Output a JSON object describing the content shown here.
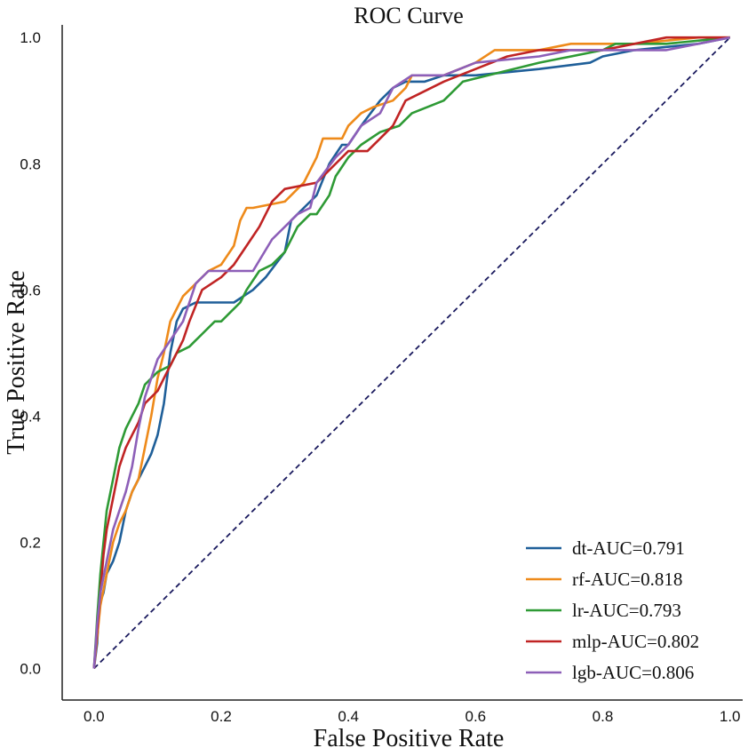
{
  "chart_data": {
    "type": "line",
    "title": "ROC Curve",
    "xlabel": "False Positive Rate",
    "ylabel": "True Positive Rate",
    "xlim": [
      -0.05,
      1.02
    ],
    "ylim": [
      -0.05,
      1.02
    ],
    "xticks": [
      "0.0",
      "0.2",
      "0.4",
      "0.6",
      "0.8",
      "1.0"
    ],
    "yticks": [
      "0.0",
      "0.2",
      "0.4",
      "0.6",
      "0.8",
      "1.0"
    ],
    "grid": false,
    "legend_position": "bottom-right",
    "diagonal": {
      "color": "#1a1a5e",
      "style": "dashed",
      "points": [
        [
          0,
          0
        ],
        [
          1,
          1
        ]
      ]
    },
    "series": [
      {
        "name": "dt-AUC=0.791",
        "color": "#1f5f99",
        "points": [
          [
            0,
            0
          ],
          [
            0.005,
            0.04
          ],
          [
            0.008,
            0.1
          ],
          [
            0.015,
            0.12
          ],
          [
            0.02,
            0.15
          ],
          [
            0.03,
            0.17
          ],
          [
            0.04,
            0.2
          ],
          [
            0.05,
            0.25
          ],
          [
            0.06,
            0.28
          ],
          [
            0.07,
            0.3
          ],
          [
            0.08,
            0.32
          ],
          [
            0.09,
            0.34
          ],
          [
            0.1,
            0.37
          ],
          [
            0.11,
            0.42
          ],
          [
            0.12,
            0.5
          ],
          [
            0.13,
            0.55
          ],
          [
            0.14,
            0.57
          ],
          [
            0.16,
            0.58
          ],
          [
            0.22,
            0.58
          ],
          [
            0.25,
            0.6
          ],
          [
            0.27,
            0.62
          ],
          [
            0.3,
            0.66
          ],
          [
            0.31,
            0.71
          ],
          [
            0.33,
            0.73
          ],
          [
            0.35,
            0.75
          ],
          [
            0.37,
            0.8
          ],
          [
            0.39,
            0.83
          ],
          [
            0.4,
            0.83
          ],
          [
            0.42,
            0.86
          ],
          [
            0.45,
            0.9
          ],
          [
            0.47,
            0.92
          ],
          [
            0.49,
            0.93
          ],
          [
            0.52,
            0.93
          ],
          [
            0.55,
            0.94
          ],
          [
            0.6,
            0.94
          ],
          [
            0.7,
            0.95
          ],
          [
            0.78,
            0.96
          ],
          [
            0.8,
            0.97
          ],
          [
            0.85,
            0.98
          ],
          [
            0.95,
            0.99
          ],
          [
            1,
            1
          ]
        ]
      },
      {
        "name": "rf-AUC=0.818",
        "color": "#ee8a1a",
        "points": [
          [
            0,
            0
          ],
          [
            0.01,
            0.1
          ],
          [
            0.02,
            0.15
          ],
          [
            0.03,
            0.2
          ],
          [
            0.04,
            0.23
          ],
          [
            0.05,
            0.25
          ],
          [
            0.06,
            0.28
          ],
          [
            0.07,
            0.3
          ],
          [
            0.08,
            0.35
          ],
          [
            0.09,
            0.4
          ],
          [
            0.1,
            0.46
          ],
          [
            0.11,
            0.5
          ],
          [
            0.12,
            0.55
          ],
          [
            0.13,
            0.57
          ],
          [
            0.14,
            0.59
          ],
          [
            0.15,
            0.6
          ],
          [
            0.17,
            0.62
          ],
          [
            0.18,
            0.63
          ],
          [
            0.2,
            0.64
          ],
          [
            0.22,
            0.67
          ],
          [
            0.23,
            0.71
          ],
          [
            0.24,
            0.73
          ],
          [
            0.25,
            0.73
          ],
          [
            0.3,
            0.74
          ],
          [
            0.33,
            0.77
          ],
          [
            0.35,
            0.81
          ],
          [
            0.36,
            0.84
          ],
          [
            0.39,
            0.84
          ],
          [
            0.4,
            0.86
          ],
          [
            0.42,
            0.88
          ],
          [
            0.44,
            0.89
          ],
          [
            0.47,
            0.9
          ],
          [
            0.49,
            0.92
          ],
          [
            0.5,
            0.94
          ],
          [
            0.55,
            0.94
          ],
          [
            0.6,
            0.96
          ],
          [
            0.63,
            0.98
          ],
          [
            0.7,
            0.98
          ],
          [
            0.75,
            0.99
          ],
          [
            0.85,
            0.99
          ],
          [
            0.95,
            1
          ],
          [
            1,
            1
          ]
        ]
      },
      {
        "name": "lr-AUC=0.793",
        "color": "#2e9a35",
        "points": [
          [
            0,
            0
          ],
          [
            0.005,
            0.08
          ],
          [
            0.01,
            0.15
          ],
          [
            0.015,
            0.2
          ],
          [
            0.02,
            0.25
          ],
          [
            0.03,
            0.3
          ],
          [
            0.04,
            0.35
          ],
          [
            0.05,
            0.38
          ],
          [
            0.06,
            0.4
          ],
          [
            0.07,
            0.42
          ],
          [
            0.08,
            0.45
          ],
          [
            0.1,
            0.47
          ],
          [
            0.12,
            0.48
          ],
          [
            0.13,
            0.5
          ],
          [
            0.15,
            0.51
          ],
          [
            0.16,
            0.52
          ],
          [
            0.17,
            0.53
          ],
          [
            0.19,
            0.55
          ],
          [
            0.2,
            0.55
          ],
          [
            0.21,
            0.56
          ],
          [
            0.22,
            0.57
          ],
          [
            0.23,
            0.58
          ],
          [
            0.24,
            0.6
          ],
          [
            0.26,
            0.63
          ],
          [
            0.28,
            0.64
          ],
          [
            0.3,
            0.66
          ],
          [
            0.32,
            0.7
          ],
          [
            0.33,
            0.71
          ],
          [
            0.34,
            0.72
          ],
          [
            0.35,
            0.72
          ],
          [
            0.37,
            0.75
          ],
          [
            0.38,
            0.78
          ],
          [
            0.4,
            0.81
          ],
          [
            0.42,
            0.83
          ],
          [
            0.45,
            0.85
          ],
          [
            0.48,
            0.86
          ],
          [
            0.5,
            0.88
          ],
          [
            0.55,
            0.9
          ],
          [
            0.58,
            0.93
          ],
          [
            0.62,
            0.94
          ],
          [
            0.7,
            0.96
          ],
          [
            0.8,
            0.98
          ],
          [
            0.82,
            0.99
          ],
          [
            0.9,
            0.99
          ],
          [
            1,
            1
          ]
        ]
      },
      {
        "name": "mlp-AUC=0.802",
        "color": "#c02424",
        "points": [
          [
            0,
            0
          ],
          [
            0.005,
            0.06
          ],
          [
            0.01,
            0.12
          ],
          [
            0.015,
            0.18
          ],
          [
            0.02,
            0.22
          ],
          [
            0.03,
            0.27
          ],
          [
            0.04,
            0.32
          ],
          [
            0.05,
            0.35
          ],
          [
            0.06,
            0.37
          ],
          [
            0.07,
            0.39
          ],
          [
            0.08,
            0.42
          ],
          [
            0.1,
            0.44
          ],
          [
            0.11,
            0.46
          ],
          [
            0.13,
            0.5
          ],
          [
            0.14,
            0.52
          ],
          [
            0.15,
            0.55
          ],
          [
            0.17,
            0.6
          ],
          [
            0.2,
            0.62
          ],
          [
            0.22,
            0.64
          ],
          [
            0.24,
            0.67
          ],
          [
            0.26,
            0.7
          ],
          [
            0.28,
            0.74
          ],
          [
            0.3,
            0.76
          ],
          [
            0.35,
            0.77
          ],
          [
            0.37,
            0.79
          ],
          [
            0.4,
            0.82
          ],
          [
            0.43,
            0.82
          ],
          [
            0.45,
            0.84
          ],
          [
            0.47,
            0.86
          ],
          [
            0.49,
            0.9
          ],
          [
            0.55,
            0.93
          ],
          [
            0.6,
            0.95
          ],
          [
            0.65,
            0.97
          ],
          [
            0.7,
            0.98
          ],
          [
            0.8,
            0.98
          ],
          [
            0.85,
            0.99
          ],
          [
            0.9,
            1
          ],
          [
            1,
            1
          ]
        ]
      },
      {
        "name": "lgb-AUC=0.806",
        "color": "#8d5fb8",
        "points": [
          [
            0,
            0
          ],
          [
            0.005,
            0.07
          ],
          [
            0.01,
            0.12
          ],
          [
            0.02,
            0.17
          ],
          [
            0.03,
            0.22
          ],
          [
            0.04,
            0.25
          ],
          [
            0.05,
            0.28
          ],
          [
            0.06,
            0.32
          ],
          [
            0.07,
            0.38
          ],
          [
            0.08,
            0.43
          ],
          [
            0.09,
            0.46
          ],
          [
            0.1,
            0.49
          ],
          [
            0.12,
            0.52
          ],
          [
            0.14,
            0.55
          ],
          [
            0.15,
            0.58
          ],
          [
            0.16,
            0.61
          ],
          [
            0.18,
            0.63
          ],
          [
            0.25,
            0.63
          ],
          [
            0.28,
            0.68
          ],
          [
            0.3,
            0.7
          ],
          [
            0.32,
            0.72
          ],
          [
            0.34,
            0.73
          ],
          [
            0.35,
            0.77
          ],
          [
            0.38,
            0.81
          ],
          [
            0.4,
            0.83
          ],
          [
            0.42,
            0.86
          ],
          [
            0.45,
            0.88
          ],
          [
            0.47,
            0.92
          ],
          [
            0.5,
            0.94
          ],
          [
            0.55,
            0.94
          ],
          [
            0.6,
            0.96
          ],
          [
            0.7,
            0.97
          ],
          [
            0.75,
            0.98
          ],
          [
            0.8,
            0.98
          ],
          [
            0.9,
            0.98
          ],
          [
            1,
            1
          ]
        ]
      }
    ]
  }
}
